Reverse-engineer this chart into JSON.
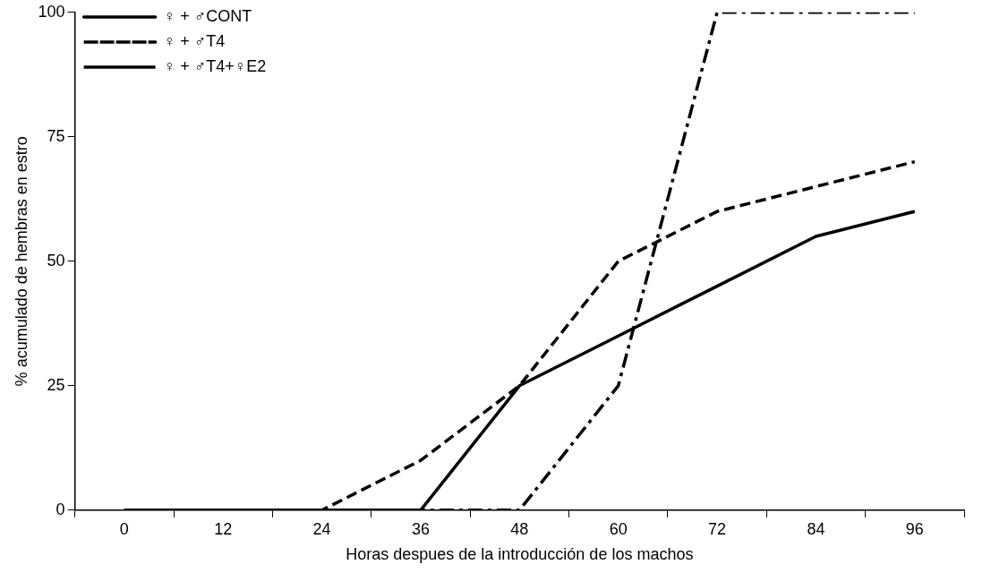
{
  "chart_data": {
    "type": "line",
    "xlabel": "Horas despues de la introducción de los machos",
    "ylabel": "% acumulado de hembras en estro",
    "categories": [
      "0",
      "12",
      "24",
      "36",
      "48",
      "60",
      "72",
      "84",
      "96"
    ],
    "ylim": [
      0,
      100
    ],
    "yticks": [
      0,
      25,
      50,
      75,
      100
    ],
    "grid": false,
    "legend": "top left",
    "marker": "none",
    "series": [
      {
        "name": "♀ + ♂CONT",
        "color": "#000000",
        "line_style": "solid",
        "values": [
          0,
          0,
          0,
          0,
          25,
          35,
          45,
          55,
          60
        ]
      },
      {
        "name": "♀ + ♂T4",
        "color": "#000000",
        "line_style": "dashed",
        "values": [
          0,
          0,
          0,
          10,
          25,
          50,
          60,
          65,
          70
        ]
      },
      {
        "name": "♀ + ♂T4+♀E2",
        "color": "#000000",
        "line_style": "dashdot",
        "values": [
          0,
          0,
          0,
          0,
          0,
          25,
          100,
          100,
          100
        ]
      }
    ]
  }
}
